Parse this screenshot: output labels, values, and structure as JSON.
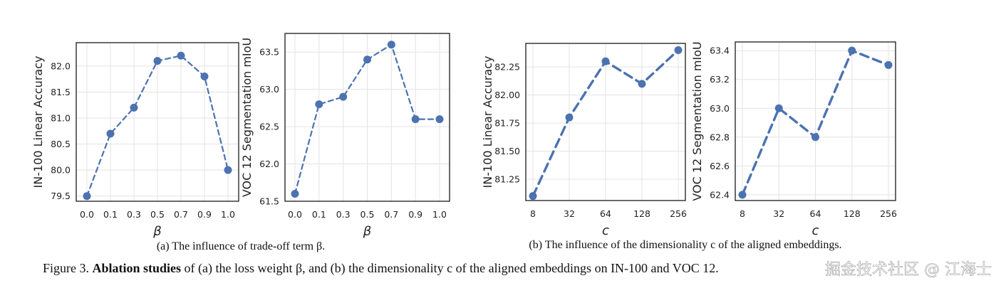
{
  "chart_data": [
    {
      "type": "line",
      "id": "a1",
      "categories": [
        "0.0",
        "0.1",
        "0.3",
        "0.5",
        "0.7",
        "0.9",
        "1.0"
      ],
      "values": [
        79.5,
        80.7,
        81.2,
        82.1,
        82.2,
        81.8,
        80.0
      ],
      "xlabel": "β",
      "ylabel": "IN-100 Linear Accuracy",
      "ylim": [
        79.4,
        82.45
      ],
      "yticks": [
        "79.5",
        "80.0",
        "80.5",
        "81.0",
        "81.5",
        "82.0"
      ],
      "grid": true,
      "color": "#4c72b0"
    },
    {
      "type": "line",
      "id": "a2",
      "categories": [
        "0.0",
        "0.1",
        "0.3",
        "0.5",
        "0.7",
        "0.9",
        "1.0"
      ],
      "values": [
        61.6,
        62.8,
        62.9,
        63.4,
        63.6,
        62.6,
        62.6
      ],
      "xlabel": "β",
      "ylabel": "VOC 12 Segmentation mIoU",
      "ylim": [
        61.5,
        63.75
      ],
      "yticks": [
        "61.5",
        "62.0",
        "62.5",
        "63.0",
        "63.5"
      ],
      "grid": true,
      "color": "#4c72b0"
    },
    {
      "type": "line",
      "id": "b1",
      "categories": [
        "8",
        "32",
        "64",
        "128",
        "256"
      ],
      "values": [
        81.1,
        81.8,
        82.3,
        82.1,
        82.4
      ],
      "xlabel": "c",
      "ylabel": "IN-100 Linear Accuracy",
      "ylim": [
        81.06,
        82.46
      ],
      "yticks": [
        "81.25",
        "81.50",
        "81.75",
        "82.00",
        "82.25"
      ],
      "grid": true,
      "color": "#4c72b0"
    },
    {
      "type": "line",
      "id": "b2",
      "categories": [
        "8",
        "32",
        "64",
        "128",
        "256"
      ],
      "values": [
        62.4,
        63.0,
        62.8,
        63.4,
        63.3
      ],
      "xlabel": "c",
      "ylabel": "VOC 12 Segmentation mIoU",
      "ylim": [
        62.36,
        63.46
      ],
      "yticks": [
        "62.4",
        "62.6",
        "62.8",
        "63.0",
        "63.2",
        "63.4"
      ],
      "grid": true,
      "color": "#4c72b0"
    }
  ],
  "subcaptions": {
    "a": "(a) The influence of trade-off term β.",
    "b": "(b) The influence of the dimensionality c of the aligned embeddings."
  },
  "caption": {
    "prefix": "Figure 3. ",
    "bold": "Ablation studies",
    "rest": " of (a) the loss weight β, and (b) the dimensionality c of the aligned embeddings on IN-100 and VOC 12."
  },
  "watermark": "掘金技术社区 @ 江海士"
}
